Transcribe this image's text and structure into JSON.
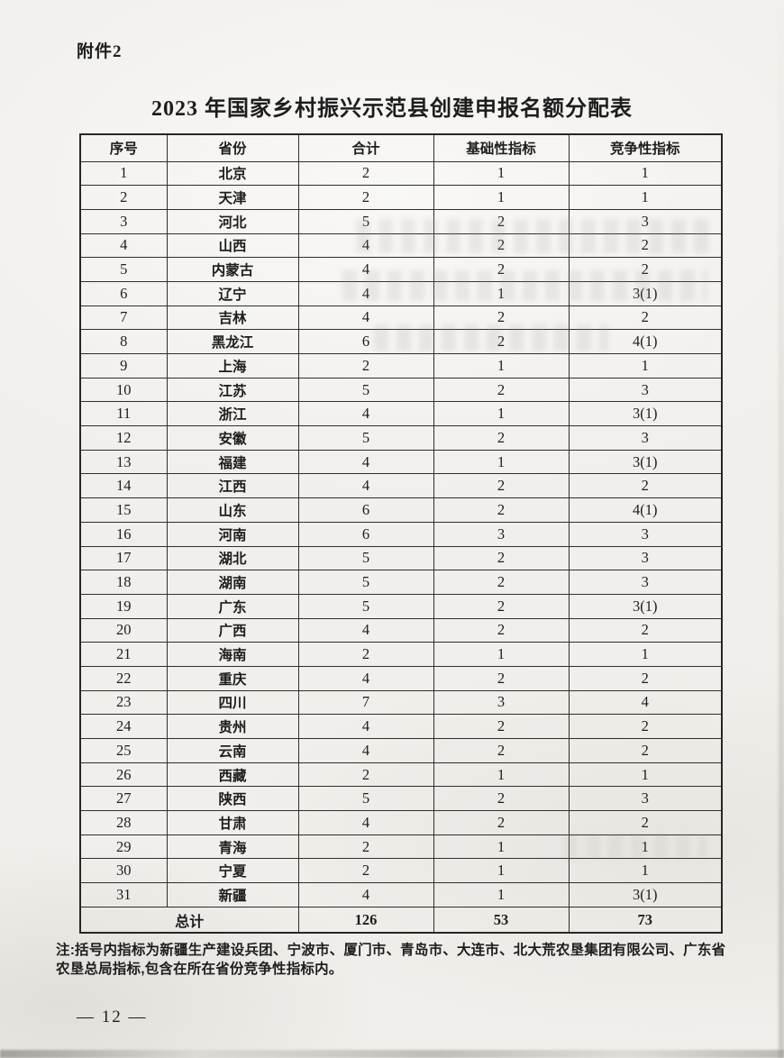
{
  "page": {
    "attachment_label": "附件2",
    "title": "2023 年国家乡村振兴示范县创建申报名额分配表",
    "note": "注:括号内指标为新疆生产建设兵团、宁波市、厦门市、青岛市、大连市、北大荒农垦集团有限公司、广东省农垦总局指标,包含在所在省份竞争性指标内。",
    "page_number": "— 12 —"
  },
  "colors": {
    "paper": "#f1efeb",
    "ink": "#1d1d1d",
    "table_border": "#2e2e2e"
  },
  "table": {
    "headers": [
      "序号",
      "省份",
      "合计",
      "基础性指标",
      "竞争性指标"
    ],
    "column_keys": [
      "row-index",
      "province",
      "total",
      "basic-indicator",
      "competitive-indicator"
    ],
    "rows": [
      [
        "1",
        "北京",
        "2",
        "1",
        "1"
      ],
      [
        "2",
        "天津",
        "2",
        "1",
        "1"
      ],
      [
        "3",
        "河北",
        "5",
        "2",
        "3"
      ],
      [
        "4",
        "山西",
        "4",
        "2",
        "2"
      ],
      [
        "5",
        "内蒙古",
        "4",
        "2",
        "2"
      ],
      [
        "6",
        "辽宁",
        "4",
        "1",
        "3(1)"
      ],
      [
        "7",
        "吉林",
        "4",
        "2",
        "2"
      ],
      [
        "8",
        "黑龙江",
        "6",
        "2",
        "4(1)"
      ],
      [
        "9",
        "上海",
        "2",
        "1",
        "1"
      ],
      [
        "10",
        "江苏",
        "5",
        "2",
        "3"
      ],
      [
        "11",
        "浙江",
        "4",
        "1",
        "3(1)"
      ],
      [
        "12",
        "安徽",
        "5",
        "2",
        "3"
      ],
      [
        "13",
        "福建",
        "4",
        "1",
        "3(1)"
      ],
      [
        "14",
        "江西",
        "4",
        "2",
        "2"
      ],
      [
        "15",
        "山东",
        "6",
        "2",
        "4(1)"
      ],
      [
        "16",
        "河南",
        "6",
        "3",
        "3"
      ],
      [
        "17",
        "湖北",
        "5",
        "2",
        "3"
      ],
      [
        "18",
        "湖南",
        "5",
        "2",
        "3"
      ],
      [
        "19",
        "广东",
        "5",
        "2",
        "3(1)"
      ],
      [
        "20",
        "广西",
        "4",
        "2",
        "2"
      ],
      [
        "21",
        "海南",
        "2",
        "1",
        "1"
      ],
      [
        "22",
        "重庆",
        "4",
        "2",
        "2"
      ],
      [
        "23",
        "四川",
        "7",
        "3",
        "4"
      ],
      [
        "24",
        "贵州",
        "4",
        "2",
        "2"
      ],
      [
        "25",
        "云南",
        "4",
        "2",
        "2"
      ],
      [
        "26",
        "西藏",
        "2",
        "1",
        "1"
      ],
      [
        "27",
        "陕西",
        "5",
        "2",
        "3"
      ],
      [
        "28",
        "甘肃",
        "4",
        "2",
        "2"
      ],
      [
        "29",
        "青海",
        "2",
        "1",
        "1"
      ],
      [
        "30",
        "宁夏",
        "2",
        "1",
        "1"
      ],
      [
        "31",
        "新疆",
        "4",
        "1",
        "3(1)"
      ]
    ],
    "total_row": {
      "label": "总计",
      "total": "126",
      "basic": "53",
      "competitive": "73"
    }
  }
}
